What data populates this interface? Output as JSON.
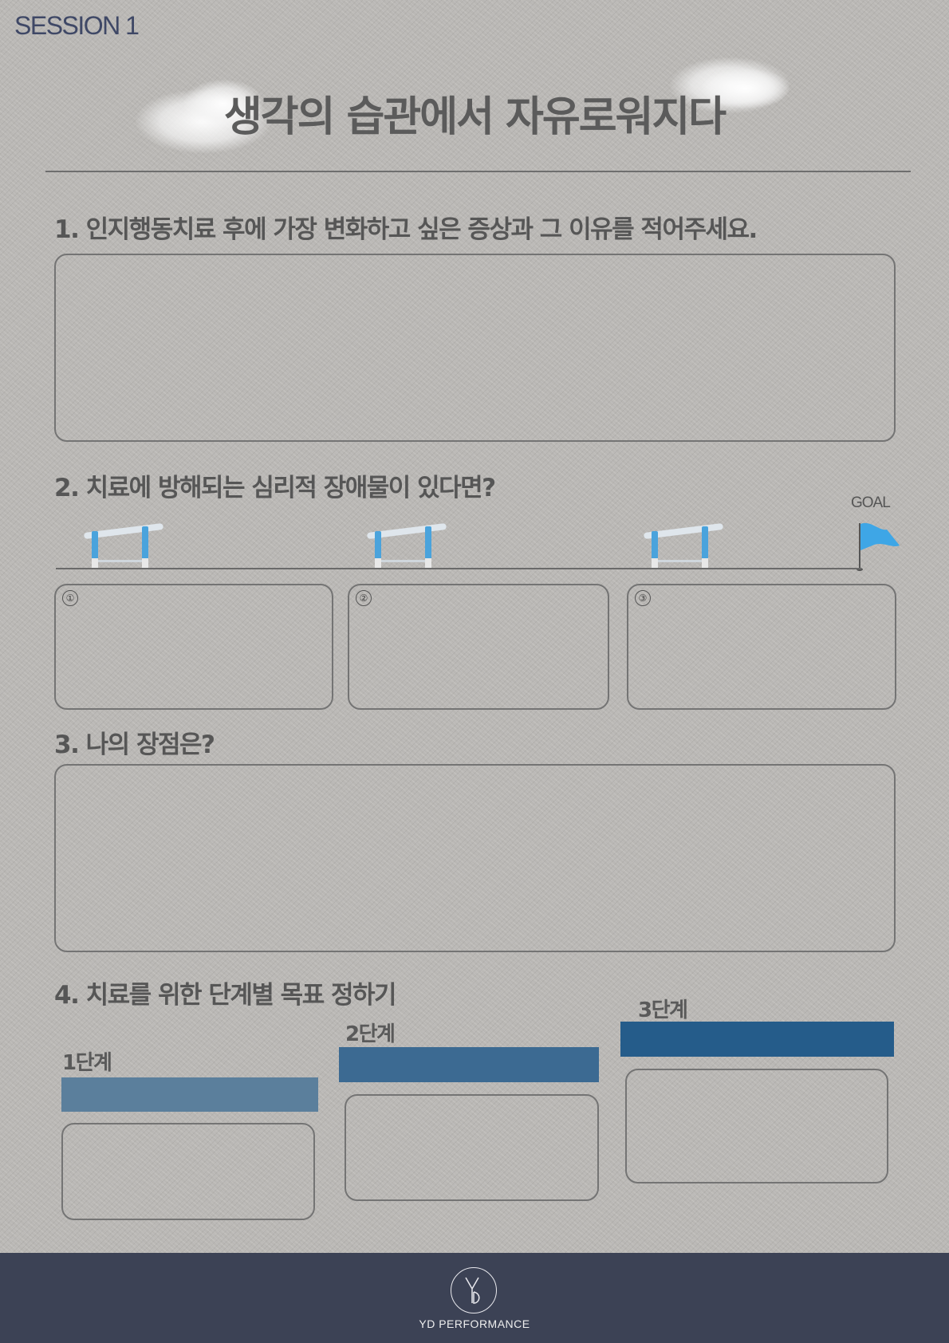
{
  "header": {
    "session": "SESSION 1",
    "title": "생각의 습관에서 자유로워지다"
  },
  "sections": {
    "q1": "1. 인지행동치료 후에 가장 변화하고 싶은 증상과 그 이유를 적어주세요.",
    "q2": "2. 치료에 방해되는 심리적 장애물이 있다면?",
    "q3": "3. 나의 장점은?",
    "q4": "4. 치료를 위한 단계별 목표 정하기"
  },
  "obstacles": {
    "goal": "GOAL",
    "boxes": [
      "①",
      "②",
      "③"
    ]
  },
  "steps": {
    "labels": [
      "1단계",
      "2단계",
      "3단계"
    ],
    "colors": [
      "#5b7f9c",
      "#3c6a92",
      "#255c8a"
    ]
  },
  "colors": {
    "hurdle_blue": "#4aa3dc",
    "footer": "#3c4255",
    "session_text": "#3f4866"
  },
  "footer": {
    "brand": "YD PERFORMANCE"
  }
}
